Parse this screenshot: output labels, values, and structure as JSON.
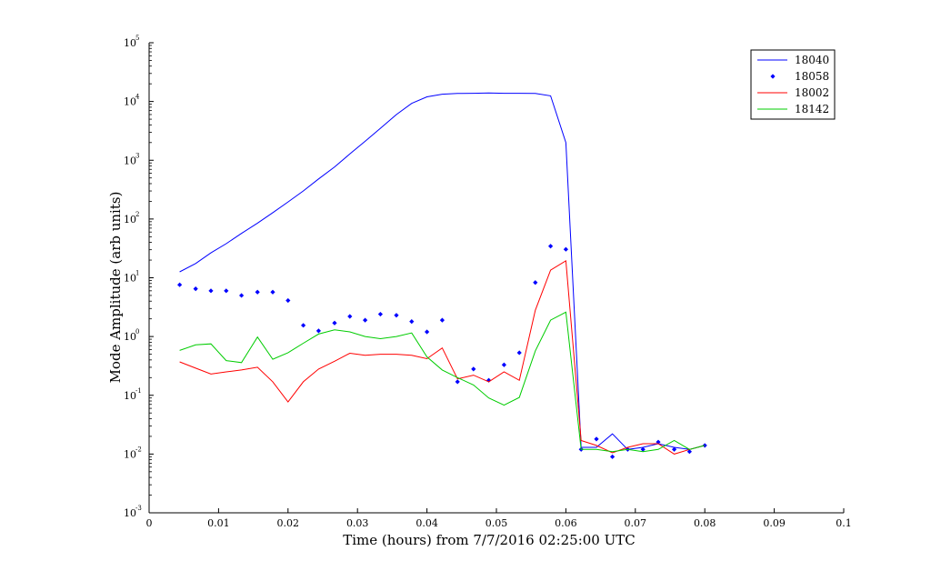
{
  "chart_data": {
    "type": "line",
    "title": "",
    "xlabel": "Time (hours) from 7/7/2016 02:25:00 UTC",
    "ylabel": "Mode Amplitude (arb units)",
    "xlim": [
      0,
      0.1
    ],
    "ylim": [
      0.001,
      100000
    ],
    "yscale": "log",
    "grid": false,
    "legend_position": "top-right",
    "x_ticks": [
      "0",
      "0.01",
      "0.02",
      "0.03",
      "0.04",
      "0.05",
      "0.06",
      "0.07",
      "0.08",
      "0.09",
      "0.1"
    ],
    "y_ticks": [
      {
        "base": "10",
        "exp": "-3"
      },
      {
        "base": "10",
        "exp": "-2"
      },
      {
        "base": "10",
        "exp": "-1"
      },
      {
        "base": "10",
        "exp": "0"
      },
      {
        "base": "10",
        "exp": "1"
      },
      {
        "base": "10",
        "exp": "2"
      },
      {
        "base": "10",
        "exp": "3"
      },
      {
        "base": "10",
        "exp": "4"
      },
      {
        "base": "10",
        "exp": "5"
      }
    ],
    "x": [
      0.0044,
      0.0067,
      0.0089,
      0.0111,
      0.0133,
      0.0156,
      0.0178,
      0.02,
      0.0222,
      0.0244,
      0.0267,
      0.0289,
      0.0311,
      0.0333,
      0.0356,
      0.0378,
      0.04,
      0.0422,
      0.0444,
      0.0467,
      0.0489,
      0.0511,
      0.0533,
      0.0556,
      0.0578,
      0.06,
      0.0622,
      0.0644,
      0.0667,
      0.0689,
      0.0711,
      0.0733,
      0.0756,
      0.0778,
      0.08
    ],
    "series": [
      {
        "name": "18040",
        "style": "line",
        "color": "#0000ff",
        "values": [
          12.6,
          17.5,
          26.5,
          38,
          57,
          85,
          128,
          195,
          300,
          480,
          770,
          1280,
          2100,
          3500,
          6000,
          9300,
          12000,
          13300,
          13700,
          13800,
          14000,
          13800,
          13800,
          13700,
          12500,
          2000,
          0.013,
          0.013,
          0.022,
          0.012,
          0.013,
          0.015,
          0.013,
          0.012,
          0.014
        ]
      },
      {
        "name": "18058",
        "style": "markers",
        "color": "#0000ff",
        "values": [
          7.6,
          6.5,
          6.0,
          6.0,
          5.0,
          5.7,
          5.7,
          4.1,
          1.55,
          1.25,
          1.7,
          2.2,
          1.9,
          2.4,
          2.3,
          1.8,
          1.2,
          1.9,
          0.17,
          0.28,
          0.18,
          0.33,
          0.53,
          8.3,
          34.5,
          30.5,
          0.012,
          0.018,
          0.009,
          0.012,
          0.012,
          0.016,
          0.012,
          0.011,
          0.014
        ]
      },
      {
        "name": "18002",
        "style": "line",
        "color": "#ff0000",
        "values": [
          0.37,
          0.29,
          0.23,
          0.25,
          0.27,
          0.3,
          0.17,
          0.077,
          0.17,
          0.28,
          0.38,
          0.52,
          0.48,
          0.5,
          0.5,
          0.48,
          0.42,
          0.64,
          0.19,
          0.22,
          0.17,
          0.25,
          0.18,
          2.8,
          13.5,
          19.5,
          0.017,
          0.014,
          0.0105,
          0.013,
          0.015,
          0.015,
          0.01,
          0.012,
          0.014
        ]
      },
      {
        "name": "18142",
        "style": "line",
        "color": "#00cc00",
        "values": [
          0.58,
          0.72,
          0.75,
          0.39,
          0.36,
          0.98,
          0.41,
          0.53,
          0.77,
          1.1,
          1.3,
          1.2,
          1.0,
          0.92,
          1.0,
          1.15,
          0.45,
          0.27,
          0.2,
          0.15,
          0.09,
          0.068,
          0.092,
          0.57,
          1.9,
          2.6,
          0.012,
          0.012,
          0.011,
          0.012,
          0.011,
          0.012,
          0.017,
          0.012,
          0.014
        ]
      }
    ]
  }
}
